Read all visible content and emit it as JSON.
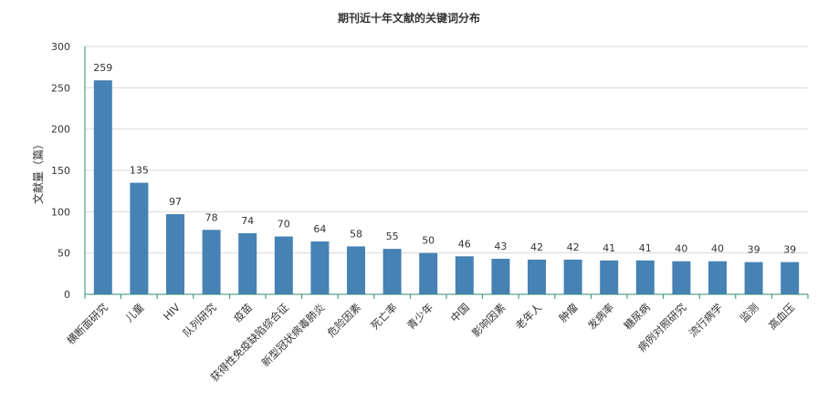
{
  "chart_data": {
    "type": "bar",
    "title": "期刊近十年文献的关键词分布",
    "xlabel": "",
    "ylabel": "文献量（篇）",
    "ylim": [
      0,
      300
    ],
    "yticks": [
      0,
      50,
      100,
      150,
      200,
      250,
      300
    ],
    "grid": true,
    "bar_color": "#4682b4",
    "axis_color": "#2e8b77",
    "categories": [
      "横断面研究",
      "儿童",
      "HIV",
      "队列研究",
      "疫苗",
      "获得性免疫缺陷综合征",
      "新型冠状病毒肺炎",
      "危险因素",
      "死亡率",
      "青少年",
      "中国",
      "影响因素",
      "老年人",
      "肿瘤",
      "发病率",
      "糖尿病",
      "病例对照研究",
      "流行病学",
      "监测",
      "高血压"
    ],
    "values": [
      259,
      135,
      97,
      78,
      74,
      70,
      64,
      58,
      55,
      50,
      46,
      43,
      42,
      42,
      41,
      41,
      40,
      40,
      39,
      39
    ],
    "data_labels": [
      "259",
      "135",
      "97",
      "78",
      "74",
      "70",
      "64",
      "58",
      "55",
      "50",
      "46",
      "43",
      "42",
      "42",
      "41",
      "41",
      "40",
      "40",
      "39",
      "39"
    ],
    "ytick_labels": [
      "0",
      "50",
      "100",
      "150",
      "200",
      "250",
      "300"
    ]
  }
}
